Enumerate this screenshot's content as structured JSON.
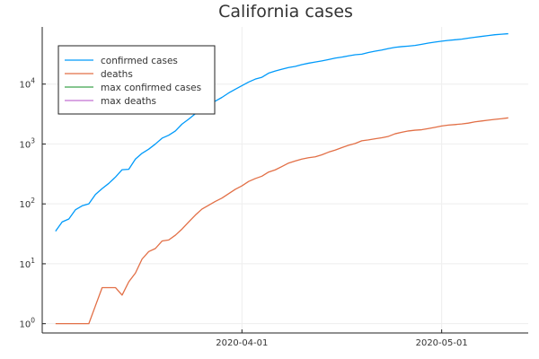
{
  "chart_data": {
    "type": "line",
    "title": "California cases",
    "xlabel": "",
    "ylabel": "",
    "y_scale": "log10",
    "ylim": [
      0.7,
      90000
    ],
    "xlim": [
      "2020-03-02",
      "2020-05-14"
    ],
    "grid": true,
    "legend_position": "top-left",
    "x_ticks": [
      {
        "x": "2020-04-01",
        "label": "2020-04-01"
      },
      {
        "x": "2020-05-01",
        "label": "2020-05-01"
      }
    ],
    "y_ticks": [
      {
        "y": 1,
        "base": "10",
        "exp": "0"
      },
      {
        "y": 10,
        "base": "10",
        "exp": "1"
      },
      {
        "y": 100,
        "base": "10",
        "exp": "2"
      },
      {
        "y": 1000,
        "base": "10",
        "exp": "3"
      },
      {
        "y": 10000,
        "base": "10",
        "exp": "4"
      }
    ],
    "series": [
      {
        "name": "confirmed cases",
        "color": "#009AFA",
        "points": [
          [
            "2020-03-04",
            35
          ],
          [
            "2020-03-05",
            50
          ],
          [
            "2020-03-06",
            56
          ],
          [
            "2020-03-07",
            80
          ],
          [
            "2020-03-08",
            93
          ],
          [
            "2020-03-09",
            100
          ],
          [
            "2020-03-10",
            144
          ],
          [
            "2020-03-11",
            180
          ],
          [
            "2020-03-12",
            220
          ],
          [
            "2020-03-13",
            280
          ],
          [
            "2020-03-14",
            372
          ],
          [
            "2020-03-15",
            378
          ],
          [
            "2020-03-16",
            560
          ],
          [
            "2020-03-17",
            700
          ],
          [
            "2020-03-18",
            820
          ],
          [
            "2020-03-19",
            1000
          ],
          [
            "2020-03-20",
            1250
          ],
          [
            "2020-03-21",
            1400
          ],
          [
            "2020-03-22",
            1650
          ],
          [
            "2020-03-23",
            2150
          ],
          [
            "2020-03-24",
            2600
          ],
          [
            "2020-03-25",
            3200
          ],
          [
            "2020-03-26",
            4000
          ],
          [
            "2020-03-27",
            4700
          ],
          [
            "2020-03-28",
            5200
          ],
          [
            "2020-03-29",
            6000
          ],
          [
            "2020-03-30",
            7100
          ],
          [
            "2020-03-31",
            8200
          ],
          [
            "2020-04-01",
            9400
          ],
          [
            "2020-04-02",
            10800
          ],
          [
            "2020-04-03",
            12100
          ],
          [
            "2020-04-04",
            13000
          ],
          [
            "2020-04-05",
            15200
          ],
          [
            "2020-04-06",
            16500
          ],
          [
            "2020-04-07",
            17700
          ],
          [
            "2020-04-08",
            18900
          ],
          [
            "2020-04-09",
            19700
          ],
          [
            "2020-04-10",
            21100
          ],
          [
            "2020-04-11",
            22300
          ],
          [
            "2020-04-12",
            23300
          ],
          [
            "2020-04-13",
            24400
          ],
          [
            "2020-04-14",
            25700
          ],
          [
            "2020-04-15",
            27100
          ],
          [
            "2020-04-16",
            28200
          ],
          [
            "2020-04-17",
            29600
          ],
          [
            "2020-04-18",
            30900
          ],
          [
            "2020-04-19",
            31600
          ],
          [
            "2020-04-20",
            33700
          ],
          [
            "2020-04-21",
            35500
          ],
          [
            "2020-04-22",
            37000
          ],
          [
            "2020-04-23",
            39200
          ],
          [
            "2020-04-24",
            41000
          ],
          [
            "2020-04-25",
            42200
          ],
          [
            "2020-04-26",
            43100
          ],
          [
            "2020-04-27",
            44200
          ],
          [
            "2020-04-28",
            46200
          ],
          [
            "2020-04-29",
            48400
          ],
          [
            "2020-04-30",
            50300
          ],
          [
            "2020-05-01",
            52000
          ],
          [
            "2020-05-02",
            53600
          ],
          [
            "2020-05-03",
            54900
          ],
          [
            "2020-05-04",
            56200
          ],
          [
            "2020-05-05",
            58500
          ],
          [
            "2020-05-06",
            60600
          ],
          [
            "2020-05-07",
            62500
          ],
          [
            "2020-05-08",
            64600
          ],
          [
            "2020-05-09",
            66700
          ],
          [
            "2020-05-10",
            68000
          ],
          [
            "2020-05-11",
            69300
          ]
        ]
      },
      {
        "name": "deaths",
        "color": "#E26F46",
        "points": [
          [
            "2020-03-04",
            1
          ],
          [
            "2020-03-05",
            1
          ],
          [
            "2020-03-06",
            1
          ],
          [
            "2020-03-07",
            1
          ],
          [
            "2020-03-08",
            1
          ],
          [
            "2020-03-09",
            1
          ],
          [
            "2020-03-10",
            2
          ],
          [
            "2020-03-11",
            4
          ],
          [
            "2020-03-12",
            4
          ],
          [
            "2020-03-13",
            4
          ],
          [
            "2020-03-14",
            3
          ],
          [
            "2020-03-15",
            5
          ],
          [
            "2020-03-16",
            7
          ],
          [
            "2020-03-17",
            12
          ],
          [
            "2020-03-18",
            16
          ],
          [
            "2020-03-19",
            18
          ],
          [
            "2020-03-20",
            24
          ],
          [
            "2020-03-21",
            25
          ],
          [
            "2020-03-22",
            30
          ],
          [
            "2020-03-23",
            38
          ],
          [
            "2020-03-24",
            50
          ],
          [
            "2020-03-25",
            65
          ],
          [
            "2020-03-26",
            82
          ],
          [
            "2020-03-27",
            95
          ],
          [
            "2020-03-28",
            110
          ],
          [
            "2020-03-29",
            125
          ],
          [
            "2020-03-30",
            148
          ],
          [
            "2020-03-31",
            175
          ],
          [
            "2020-04-01",
            200
          ],
          [
            "2020-04-02",
            237
          ],
          [
            "2020-04-03",
            265
          ],
          [
            "2020-04-04",
            290
          ],
          [
            "2020-04-05",
            340
          ],
          [
            "2020-04-06",
            370
          ],
          [
            "2020-04-07",
            420
          ],
          [
            "2020-04-08",
            480
          ],
          [
            "2020-04-09",
            520
          ],
          [
            "2020-04-10",
            560
          ],
          [
            "2020-04-11",
            590
          ],
          [
            "2020-04-12",
            610
          ],
          [
            "2020-04-13",
            660
          ],
          [
            "2020-04-14",
            730
          ],
          [
            "2020-04-15",
            790
          ],
          [
            "2020-04-16",
            870
          ],
          [
            "2020-04-17",
            950
          ],
          [
            "2020-04-18",
            1020
          ],
          [
            "2020-04-19",
            1130
          ],
          [
            "2020-04-20",
            1170
          ],
          [
            "2020-04-21",
            1220
          ],
          [
            "2020-04-22",
            1270
          ],
          [
            "2020-04-23",
            1340
          ],
          [
            "2020-04-24",
            1480
          ],
          [
            "2020-04-25",
            1570
          ],
          [
            "2020-04-26",
            1650
          ],
          [
            "2020-04-27",
            1700
          ],
          [
            "2020-04-28",
            1730
          ],
          [
            "2020-04-29",
            1810
          ],
          [
            "2020-04-30",
            1900
          ],
          [
            "2020-05-01",
            2000
          ],
          [
            "2020-05-02",
            2070
          ],
          [
            "2020-05-03",
            2110
          ],
          [
            "2020-05-04",
            2160
          ],
          [
            "2020-05-05",
            2230
          ],
          [
            "2020-05-06",
            2340
          ],
          [
            "2020-05-07",
            2420
          ],
          [
            "2020-05-08",
            2500
          ],
          [
            "2020-05-09",
            2580
          ],
          [
            "2020-05-10",
            2640
          ],
          [
            "2020-05-11",
            2730
          ]
        ]
      },
      {
        "name": "max confirmed cases",
        "color": "#3EA44E",
        "points": []
      },
      {
        "name": "max deaths",
        "color": "#C271D2",
        "points": []
      }
    ]
  }
}
